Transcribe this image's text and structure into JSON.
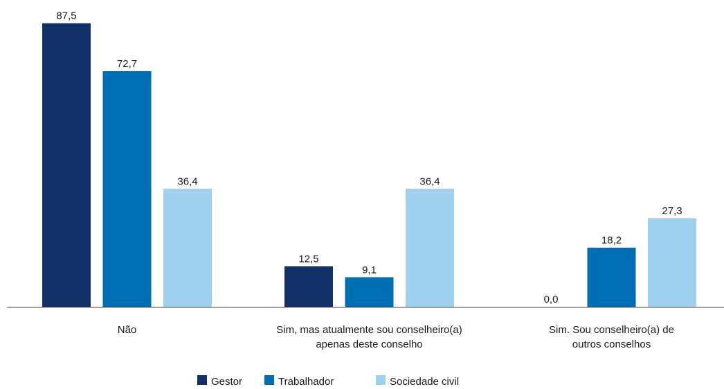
{
  "chart_data": {
    "type": "bar",
    "categories": [
      [
        "Não"
      ],
      [
        "Sim, mas atualmente sou conselheiro(a)",
        "apenas deste conselho"
      ],
      [
        "Sim. Sou conselheiro(a) de",
        "outros conselhos"
      ]
    ],
    "series": [
      {
        "name": "Gestor",
        "color": "#132f68",
        "values": [
          87.5,
          12.5,
          0.0
        ],
        "labels": [
          "87,5",
          "12,5",
          "0,0"
        ]
      },
      {
        "name": "Trabalhador",
        "color": "#006eb2",
        "values": [
          72.7,
          9.1,
          18.2
        ],
        "labels": [
          "72,7",
          "9,1",
          "18,2"
        ]
      },
      {
        "name": "Sociedade civil",
        "color": "#9fd0ee",
        "values": [
          36.4,
          36.4,
          27.3
        ],
        "labels": [
          "36,4",
          "36,4",
          "27,3"
        ]
      }
    ],
    "ylim": [
      0,
      100
    ],
    "grid": false,
    "legend_position": "bottom-center",
    "axis_color": "#333333"
  }
}
